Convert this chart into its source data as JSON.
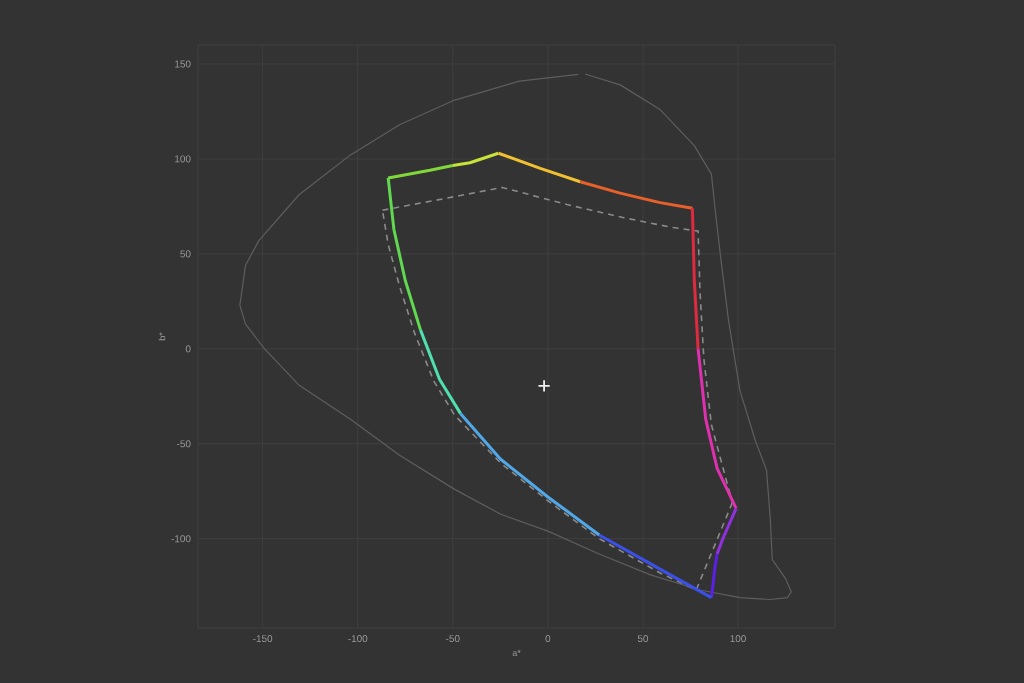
{
  "chart_data": {
    "type": "line",
    "xlabel": "a*",
    "ylabel": "b*",
    "xlim": [
      -184,
      151
    ],
    "ylim": [
      -147,
      160
    ],
    "xticks": [
      -150,
      -100,
      -50,
      0,
      50,
      100
    ],
    "yticks": [
      -100,
      -50,
      0,
      50,
      100,
      150
    ],
    "grid": true,
    "series": [
      {
        "type": "line",
        "color": "#5e5e5e",
        "line_style": "solid",
        "x": [
          19.5,
          38,
          59,
          77,
          86,
          88,
          91,
          95,
          101,
          109,
          115,
          117,
          118,
          125,
          128,
          126,
          117,
          101,
          80,
          54,
          27,
          0,
          -25,
          -49,
          -78,
          -104,
          -131,
          -149,
          -159,
          -162,
          -159,
          -152,
          -131,
          -104,
          -78,
          -49,
          -15,
          16
        ],
        "values": [
          144.7,
          139,
          126,
          107,
          92,
          73,
          47,
          15,
          -22,
          -48,
          -64,
          -90,
          -111,
          -121,
          -128,
          -131,
          -132,
          -131,
          -127,
          -119,
          -108,
          -96,
          -87,
          -74,
          -56,
          -37,
          -19,
          0,
          13,
          23,
          44,
          57,
          81,
          102,
          118,
          131,
          141,
          144.5
        ]
      },
      {
        "type": "line",
        "color": "#8a8a8a",
        "line_style": "dashed",
        "x": [
          -87,
          -55,
          -24,
          10,
          40,
          65,
          79,
          80,
          82,
          86,
          97
        ],
        "values": [
          73,
          79,
          85,
          76,
          69,
          64,
          62,
          30,
          -5,
          -40,
          -81
        ]
      },
      {
        "type": "line",
        "color": "#8a8a8a",
        "line_style": "dashed",
        "x": [
          97,
          78,
          59,
          27,
          0,
          -25,
          -49,
          -60,
          -70,
          -78,
          -84,
          -87
        ],
        "values": [
          -81,
          -127,
          -118,
          -100,
          -80,
          -60,
          -35,
          -17,
          8,
          33,
          55,
          73
        ]
      },
      {
        "type": "line",
        "color": "#80d83a",
        "line_style": "solid",
        "x": [
          -84,
          -62,
          -50
        ],
        "values": [
          90,
          94,
          96.5
        ]
      },
      {
        "type": "line",
        "color": "#c8e43a",
        "line_style": "solid",
        "x": [
          -50,
          -41,
          -26
        ],
        "values": [
          96.5,
          98,
          103
        ]
      },
      {
        "type": "line",
        "color": "#f0c030",
        "line_style": "solid",
        "x": [
          -26,
          -4,
          17
        ],
        "values": [
          103,
          95,
          88
        ]
      },
      {
        "type": "line",
        "color": "#e8602a",
        "line_style": "solid",
        "x": [
          17,
          38,
          59,
          76
        ],
        "values": [
          88,
          82,
          77,
          74
        ]
      },
      {
        "type": "line",
        "color": "#e02a40",
        "line_style": "solid",
        "x": [
          76,
          77,
          79
        ],
        "values": [
          74,
          36,
          0
        ]
      },
      {
        "type": "line",
        "color": "#e030b0",
        "line_style": "solid",
        "x": [
          79,
          83,
          89,
          99
        ],
        "values": [
          0,
          -37,
          -63,
          -84
        ]
      },
      {
        "type": "line",
        "color": "#9030e0",
        "line_style": "solid",
        "x": [
          99,
          92,
          89
        ],
        "values": [
          -84,
          -100,
          -108
        ]
      },
      {
        "type": "line",
        "color": "#5a20e8",
        "line_style": "solid",
        "x": [
          89,
          88,
          86
        ],
        "values": [
          -108,
          -114,
          -131
        ]
      },
      {
        "type": "line",
        "color": "#3a50e8",
        "line_style": "solid",
        "x": [
          86,
          59,
          27
        ],
        "values": [
          -131,
          -116,
          -98
        ]
      },
      {
        "type": "line",
        "color": "#50a8e8",
        "line_style": "solid",
        "x": [
          27,
          0,
          -25,
          -46
        ],
        "values": [
          -98,
          -78,
          -58,
          -34
        ]
      },
      {
        "type": "line",
        "color": "#50e0b0",
        "line_style": "solid",
        "x": [
          -46,
          -57,
          -67
        ],
        "values": [
          -34,
          -16,
          10
        ]
      },
      {
        "type": "line",
        "color": "#60d850",
        "line_style": "solid",
        "x": [
          -67,
          -75,
          -81,
          -84
        ],
        "values": [
          10,
          36,
          63,
          90
        ]
      },
      {
        "type": "scatter",
        "color": "#f0f0f0",
        "marker": "cross",
        "x": [
          -2
        ],
        "values": [
          -19.5
        ]
      }
    ]
  }
}
